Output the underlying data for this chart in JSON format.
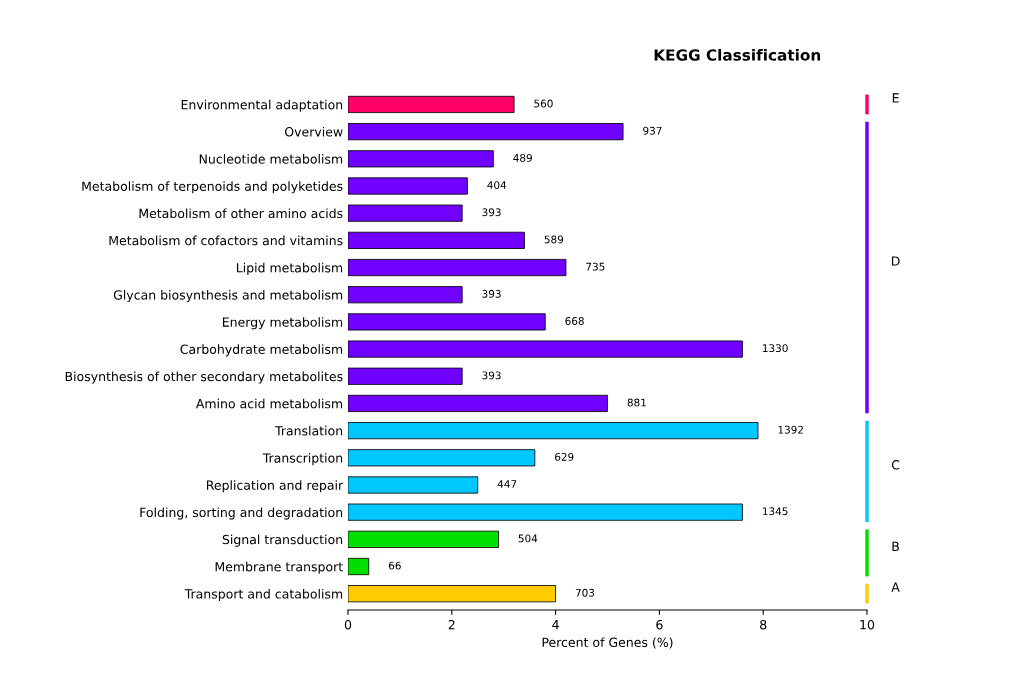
{
  "chart_data": {
    "type": "bar",
    "orientation": "horizontal",
    "title": "KEGG Classification",
    "xlabel": "Percent of Genes (%)",
    "categories": [
      "Environmental adaptation",
      "Overview",
      "Nucleotide metabolism",
      "Metabolism of terpenoids and polyketides",
      "Metabolism of other amino acids",
      "Metabolism of cofactors and vitamins",
      "Lipid metabolism",
      "Glycan biosynthesis and metabolism",
      "Energy metabolism",
      "Carbohydrate metabolism",
      "Biosynthesis of other secondary metabolites",
      "Amino acid metabolism",
      "Translation",
      "Transcription",
      "Replication and repair",
      "Folding, sorting and degradation",
      "Signal transduction",
      "Membrane transport",
      "Transport and catabolism"
    ],
    "values": [
      3.2,
      5.3,
      2.8,
      2.3,
      2.2,
      3.4,
      4.2,
      2.2,
      3.8,
      7.6,
      2.2,
      5.0,
      7.9,
      3.6,
      2.5,
      7.6,
      2.9,
      0.4,
      4.0
    ],
    "colors": [
      "#ff0066",
      "#7000ff",
      "#7000ff",
      "#7000ff",
      "#7000ff",
      "#7000ff",
      "#7000ff",
      "#7000ff",
      "#7000ff",
      "#7000ff",
      "#7000ff",
      "#7000ff",
      "#00c8ff",
      "#00c8ff",
      "#00c8ff",
      "#00c8ff",
      "#00e000",
      "#00e000",
      "#ffcc00"
    ],
    "annotations": [
      "E",
      "D",
      "C",
      "B",
      "A",
      {
        "text": "560",
        "x": 3.2,
        "y": "Environmental adaptation"
      },
      {
        "text": "937",
        "x": 5.3,
        "y": "Overview"
      },
      {
        "text": "489",
        "x": 2.8,
        "y": "Nucleotide metabolism"
      },
      {
        "text": "404",
        "x": 2.3,
        "y": "Metabolism of terpenoids and polyketides"
      },
      {
        "text": "393",
        "x": 2.2,
        "y": "Metabolism of other amino acids"
      },
      {
        "text": "589",
        "x": 3.4,
        "y": "Metabolism of cofactors and vitamins"
      },
      {
        "text": "735",
        "x": 4.2,
        "y": "Lipid metabolism"
      },
      {
        "text": "393",
        "x": 2.2,
        "y": "Glycan biosynthesis and metabolism"
      },
      {
        "text": "668",
        "x": 3.8,
        "y": "Energy metabolism"
      },
      {
        "text": "1330",
        "x": 7.6,
        "y": "Carbohydrate metabolism"
      },
      {
        "text": "393",
        "x": 2.2,
        "y": "Biosynthesis of other secondary metabolites"
      },
      {
        "text": "881",
        "x": 5.0,
        "y": "Amino acid metabolism"
      },
      {
        "text": "1392",
        "x": 7.9,
        "y": "Translation"
      },
      {
        "text": "629",
        "x": 3.6,
        "y": "Transcription"
      },
      {
        "text": "447",
        "x": 2.5,
        "y": "Replication and repair"
      },
      {
        "text": "1345",
        "x": 7.6,
        "y": "Folding, sorting and degradation"
      },
      {
        "text": "504",
        "x": 2.9,
        "y": "Signal transduction"
      },
      {
        "text": "66",
        "x": 0.4,
        "y": "Membrane transport"
      },
      {
        "text": "703",
        "x": 4.0,
        "y": "Transport and catabolism"
      }
    ],
    "xlim": [
      0,
      10
    ],
    "xticks": [
      0,
      2,
      4,
      6,
      8,
      10
    ],
    "grid": false,
    "legend": false
  }
}
